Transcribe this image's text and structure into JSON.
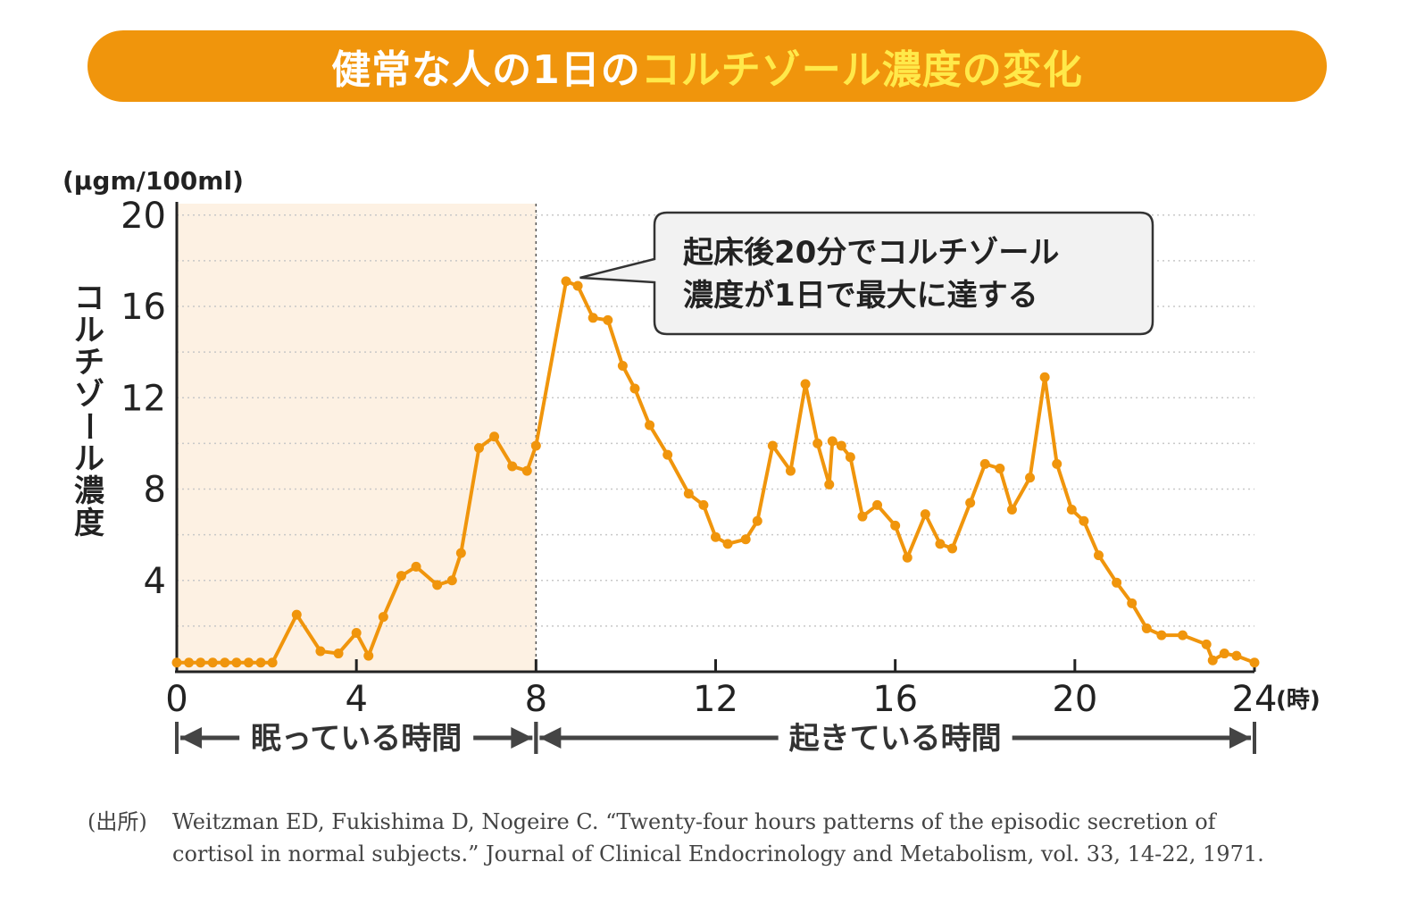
{
  "banner": {
    "title_part1": "健常な人の1日の",
    "title_part2": "コルチゾール濃度の変化"
  },
  "colors": {
    "banner": "#f0950c",
    "banner_highlight": "#ffe94a",
    "line": "#f0950c",
    "sleep_region": "#fdf1e3"
  },
  "chart_data": {
    "type": "line",
    "unit_label": "(μgm/100ml)",
    "ylabel": "コルチゾール濃度",
    "x_unit": "(時)",
    "xlim": [
      0,
      24
    ],
    "ylim": [
      0,
      20.5
    ],
    "x_ticks": [
      0,
      4,
      8,
      12,
      16,
      20,
      24
    ],
    "y_ticks": [
      4,
      8,
      12,
      16,
      20
    ],
    "grid": "dotted horizontal",
    "regions": [
      {
        "label": "眠っている時間",
        "from": 0,
        "to": 8
      },
      {
        "label": "起きている時間",
        "from": 8,
        "to": 24
      }
    ],
    "annotation": {
      "line1": "起床後20分でコルチゾール",
      "line2": "濃度が1日で最大に達する",
      "points_to": [
        8.7,
        17.1
      ]
    },
    "series": [
      {
        "x": [
          0,
          0.27,
          0.53,
          0.8,
          1.07,
          1.33,
          1.6,
          1.87,
          2.13,
          2.67,
          3.2,
          3.6,
          4.0,
          4.27,
          4.6,
          5.0,
          5.33,
          5.8,
          6.13,
          6.33,
          6.73,
          7.07,
          7.47,
          7.8,
          8.0,
          8.67,
          8.93,
          9.27,
          9.6,
          9.93,
          10.2,
          10.53,
          10.93,
          11.4,
          11.73,
          12.0,
          12.27,
          12.67,
          12.93,
          13.27,
          13.67,
          14.0,
          14.27,
          14.53,
          14.6,
          14.8,
          15.0,
          15.27,
          15.6,
          16.0,
          16.27,
          16.67,
          17.0,
          17.27,
          17.67,
          18.0,
          18.33,
          18.6,
          19.0,
          19.33,
          19.6,
          19.93,
          20.2,
          20.53,
          20.93,
          21.27,
          21.6,
          21.93,
          22.4,
          22.93,
          23.07,
          23.33,
          23.6,
          24.0
        ],
        "y": [
          0.4,
          0.4,
          0.4,
          0.4,
          0.4,
          0.4,
          0.4,
          0.4,
          0.4,
          2.5,
          0.9,
          0.8,
          1.7,
          0.7,
          2.4,
          4.2,
          4.6,
          3.8,
          4.0,
          5.2,
          9.8,
          10.3,
          9.0,
          8.8,
          9.9,
          17.1,
          16.9,
          15.5,
          15.4,
          13.4,
          12.4,
          10.8,
          9.5,
          7.8,
          7.3,
          5.9,
          5.6,
          5.8,
          6.6,
          9.9,
          8.8,
          12.6,
          10.0,
          8.2,
          10.1,
          9.9,
          9.4,
          6.8,
          7.3,
          6.4,
          5.0,
          6.9,
          5.6,
          5.4,
          7.4,
          9.1,
          8.9,
          7.1,
          8.5,
          12.9,
          9.1,
          7.1,
          6.6,
          5.1,
          3.9,
          3.0,
          1.9,
          1.6,
          1.6,
          1.2,
          0.5,
          0.8,
          0.7,
          0.4
        ]
      }
    ]
  },
  "citation": {
    "label": "(出所)",
    "line1": "Weitzman ED, Fukishima D, Nogeire C. “Twenty-four hours patterns of the episodic secretion of",
    "line2": "cortisol in normal subjects.” Journal of Clinical Endocrinology and Metabolism, vol. 33, 14-22, 1971."
  }
}
